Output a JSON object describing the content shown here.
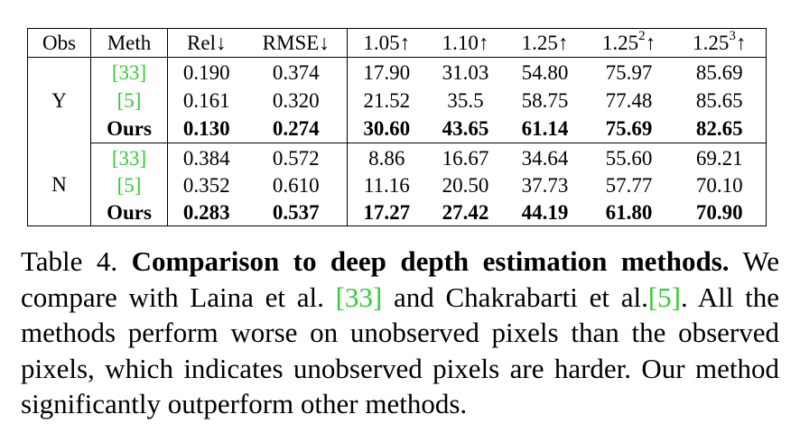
{
  "table": {
    "headers": {
      "obs": "Obs",
      "meth": "Meth",
      "rel": "Rel↓",
      "rmse": "RMSE↓",
      "d105": "1.05↑",
      "d110": "1.10↑",
      "d125": "1.25↑",
      "d125sq_base": "1.25",
      "d125sq_exp": "2",
      "d125sq_arrow": "↑",
      "d125cu_base": "1.25",
      "d125cu_exp": "3",
      "d125cu_arrow": "↑"
    },
    "groups": [
      {
        "obs": "Y",
        "rows": [
          {
            "method": "[33]",
            "cite": true,
            "bold": false,
            "values": [
              "0.190",
              "0.374",
              "17.90",
              "31.03",
              "54.80",
              "75.97",
              "85.69"
            ]
          },
          {
            "method": "[5]",
            "cite": true,
            "bold": false,
            "values": [
              "0.161",
              "0.320",
              "21.52",
              "35.5",
              "58.75",
              "77.48",
              "85.65"
            ]
          },
          {
            "method": "Ours",
            "cite": false,
            "bold": true,
            "values": [
              "0.130",
              "0.274",
              "30.60",
              "43.65",
              "61.14",
              "75.69",
              "82.65"
            ]
          }
        ]
      },
      {
        "obs": "N",
        "rows": [
          {
            "method": "[33]",
            "cite": true,
            "bold": false,
            "values": [
              "0.384",
              "0.572",
              "8.86",
              "16.67",
              "34.64",
              "55.60",
              "69.21"
            ]
          },
          {
            "method": "[5]",
            "cite": true,
            "bold": false,
            "values": [
              "0.352",
              "0.610",
              "11.16",
              "20.50",
              "37.73",
              "57.77",
              "70.10"
            ]
          },
          {
            "method": "Ours",
            "cite": false,
            "bold": true,
            "values": [
              "0.283",
              "0.537",
              "17.27",
              "27.42",
              "44.19",
              "61.80",
              "70.90"
            ]
          }
        ]
      }
    ]
  },
  "caption": {
    "label": "Table 4.",
    "title": "Comparison to deep depth estimation methods.",
    "text_1": "We compare with Laina et al. ",
    "cite_1": "[33]",
    "text_2": " and Chakrabarti et al.",
    "cite_2": "[5]",
    "text_3": ". All the methods perform worse on unobserved pixels than the observed pixels, which indicates unobserved pixels are harder. Our method significantly outperform other methods."
  },
  "colors": {
    "citation": "#33cc33",
    "text": "#000000",
    "background": "#ffffff"
  }
}
